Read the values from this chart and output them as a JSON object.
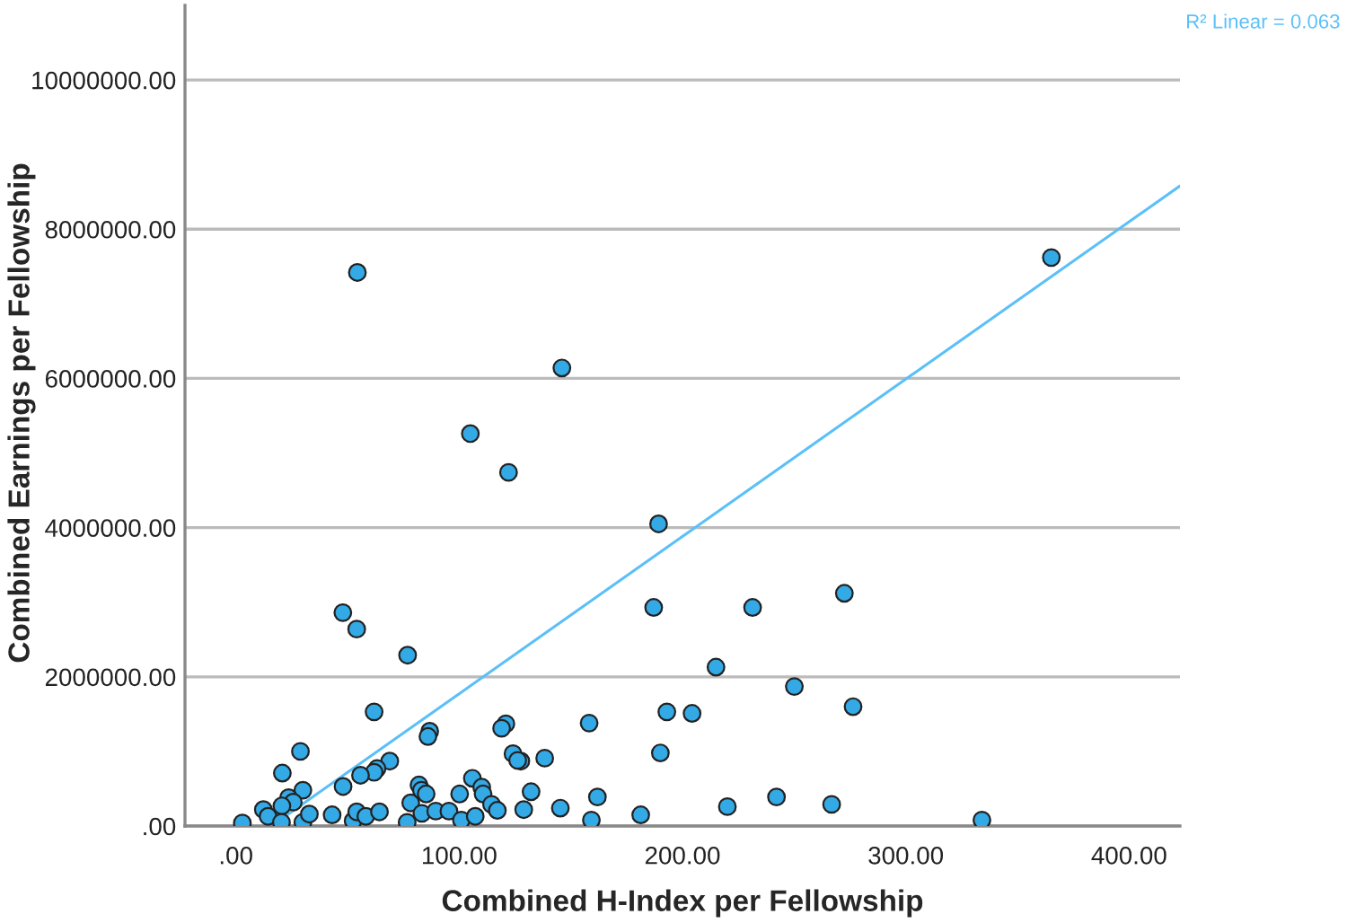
{
  "chart_data": {
    "type": "scatter",
    "xlabel": "Combined H-Index per Fellowship",
    "ylabel": "Combined Earnings per Fellowship",
    "annotations": [
      "R² Linear = 0.063"
    ],
    "xlim": [
      -22.8,
      422.8
    ],
    "ylim": [
      0,
      11000000
    ],
    "xticks": [
      {
        "value": 0,
        "label": ".00"
      },
      {
        "value": 100,
        "label": "100.00"
      },
      {
        "value": 200,
        "label": "200.00"
      },
      {
        "value": 300,
        "label": "300.00"
      },
      {
        "value": 400,
        "label": "400.00"
      }
    ],
    "yticks": [
      {
        "value": 0,
        "label": ".00"
      },
      {
        "value": 2000000,
        "label": "2000000.00"
      },
      {
        "value": 4000000,
        "label": "4000000.00"
      },
      {
        "value": 6000000,
        "label": "6000000.00"
      },
      {
        "value": 8000000,
        "label": "8000000.00"
      },
      {
        "value": 10000000,
        "label": "10000000.00"
      }
    ],
    "grid": "y",
    "marker": "circle",
    "series": [
      {
        "color": "#33a9e6",
        "x": [
          54.4,
          365.2,
          146,
          105,
          122.1,
          189.3,
          187.1,
          231.4,
          272.5,
          215,
          250.1,
          276.4,
          193,
          204.3,
          158.2,
          127.6,
          138.3,
          190.1,
          132.2,
          128.9,
          145.3,
          161.9,
          159.2,
          181.3,
          220.1,
          242.1,
          266.8,
          334.1,
          47.9,
          54.1,
          76.9,
          61.9,
          86.8,
          86,
          120.9,
          119,
          28.9,
          20.8,
          68.9,
          63.2,
          61.9,
          55.8,
          124.1,
          126.2,
          48,
          30,
          23.6,
          25.7,
          20.6,
          12.3,
          14.4,
          2.9,
          20.4,
          30,
          32.9,
          43.1,
          52.5,
          54.1,
          58.2,
          64.3,
          76.7,
          78.3,
          82,
          83.1,
          85.2,
          83.3,
          89.5,
          95.4,
          100.2,
          101,
          105.9,
          110.1,
          110.7,
          107.2,
          114.5,
          117.1
        ],
        "values": [
          7420000,
          7620000,
          6140000,
          5260000,
          4740000,
          4050000,
          2930000,
          2930000,
          3120000,
          2130000,
          1870000,
          1600000,
          1530000,
          1510000,
          1380000,
          870000,
          910000,
          980000,
          460000,
          220000,
          240000,
          390000,
          80000,
          150000,
          260000,
          390000,
          290000,
          80000,
          2860000,
          2640000,
          2290000,
          1530000,
          1270000,
          1200000,
          1370000,
          1310000,
          1000000,
          710000,
          870000,
          770000,
          720000,
          680000,
          970000,
          880000,
          530000,
          480000,
          380000,
          320000,
          270000,
          220000,
          130000,
          40000,
          50000,
          50000,
          160000,
          150000,
          70000,
          190000,
          130000,
          190000,
          50000,
          310000,
          550000,
          480000,
          430000,
          170000,
          200000,
          200000,
          430000,
          80000,
          640000,
          520000,
          430000,
          130000,
          290000,
          210000
        ]
      },
      {
        "type": "line",
        "color": "#5bc0f8",
        "marker": "none",
        "x": [
          21.6,
          422.8
        ],
        "values": [
          120000,
          8580000
        ]
      }
    ]
  }
}
